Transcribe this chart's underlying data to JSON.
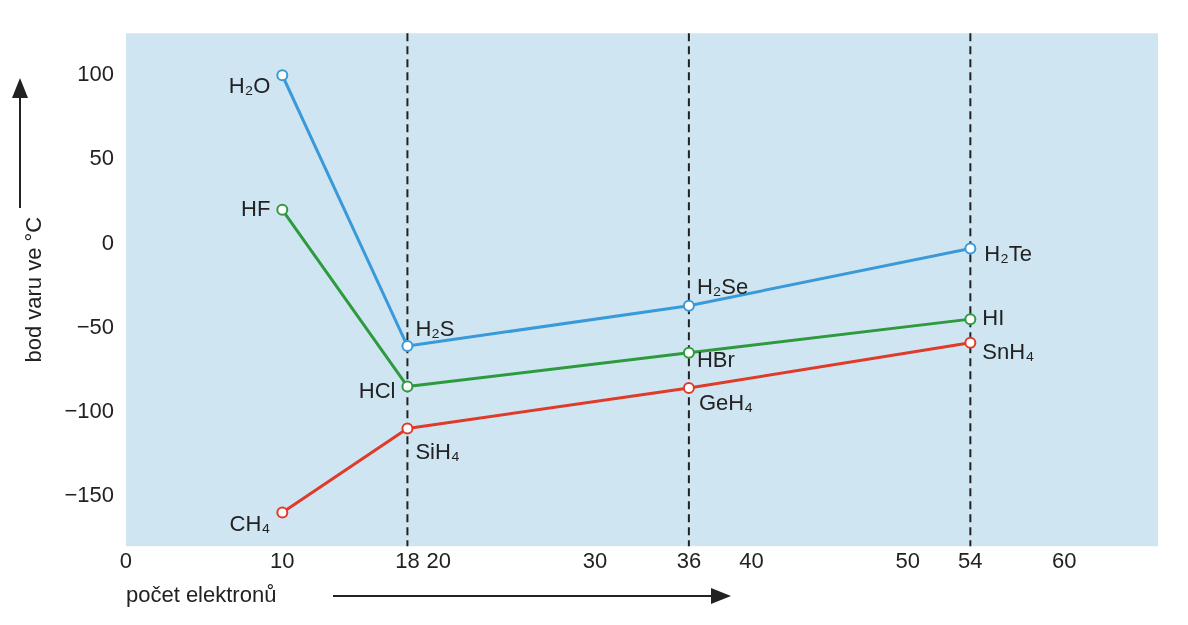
{
  "chart_data": {
    "type": "line",
    "xlabel": "počet elektronů",
    "ylabel": "bod varu ve °C",
    "xlim": [
      0,
      66
    ],
    "ylim": [
      -180,
      125
    ],
    "xticks": [
      0,
      10,
      18,
      20,
      30,
      36,
      40,
      50,
      54,
      60
    ],
    "yticks": [
      -150,
      -100,
      -50,
      0,
      50,
      100
    ],
    "grid": false,
    "legend": false,
    "marker": "circle",
    "line_style": "solid",
    "series": [
      {
        "color": "#3a9ad9",
        "x": [
          10,
          18,
          36,
          54
        ],
        "values": [
          100,
          -61,
          -37,
          -3
        ]
      },
      {
        "color": "#2e9a3e",
        "x": [
          10,
          18,
          36,
          54
        ],
        "values": [
          20,
          -85,
          -65,
          -45
        ]
      },
      {
        "color": "#e03a2a",
        "x": [
          10,
          18,
          36,
          54
        ],
        "values": [
          -160,
          -110,
          -86,
          -59
        ]
      }
    ],
    "ref_lines": [
      {
        "axis": "x",
        "value": 18,
        "color": "#222222",
        "line_style": "dashed"
      },
      {
        "axis": "x",
        "value": 36,
        "color": "#222222",
        "line_style": "dashed"
      },
      {
        "axis": "x",
        "value": 54,
        "color": "#222222",
        "line_style": "dashed"
      }
    ],
    "annotations": [
      {
        "text": "H₂O",
        "x": 10,
        "y": 100
      },
      {
        "text": "H₂S",
        "x": 18,
        "y": -61
      },
      {
        "text": "H₂Se",
        "x": 36,
        "y": -37
      },
      {
        "text": "H₂Te",
        "x": 54,
        "y": -3
      },
      {
        "text": "HF",
        "x": 10,
        "y": 20
      },
      {
        "text": "HCl",
        "x": 18,
        "y": -85
      },
      {
        "text": "HBr",
        "x": 36,
        "y": -65
      },
      {
        "text": "HI",
        "x": 54,
        "y": -45
      },
      {
        "text": "CH₄",
        "x": 10,
        "y": -160
      },
      {
        "text": "SiH₄",
        "x": 18,
        "y": -110
      },
      {
        "text": "GeH₄",
        "x": 36,
        "y": -86
      },
      {
        "text": "SnH₄",
        "x": 54,
        "y": -59
      }
    ]
  }
}
